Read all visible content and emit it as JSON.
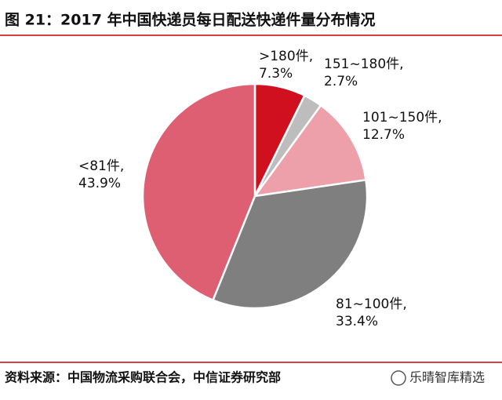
{
  "chart_data": {
    "type": "pie",
    "title": "图 21：2017 年中国快递员每日配送快递件量分布情况",
    "categories": [
      ">180件,",
      "151~180件,",
      "101~150件,",
      "81~100件,",
      "<81件,"
    ],
    "values": [
      7.3,
      2.7,
      12.7,
      33.4,
      43.9
    ],
    "value_labels": [
      "7.3%",
      "2.7%",
      "12.7%",
      "33.4%",
      "43.9%"
    ],
    "colors": [
      "#d0101e",
      "#bdbdbd",
      "#eea0aa",
      "#7f7f7f",
      "#de5f72"
    ],
    "source": "资料来源：中国物流采购联合会，中信证券研究部",
    "watermark": "乐晴智库精选"
  }
}
